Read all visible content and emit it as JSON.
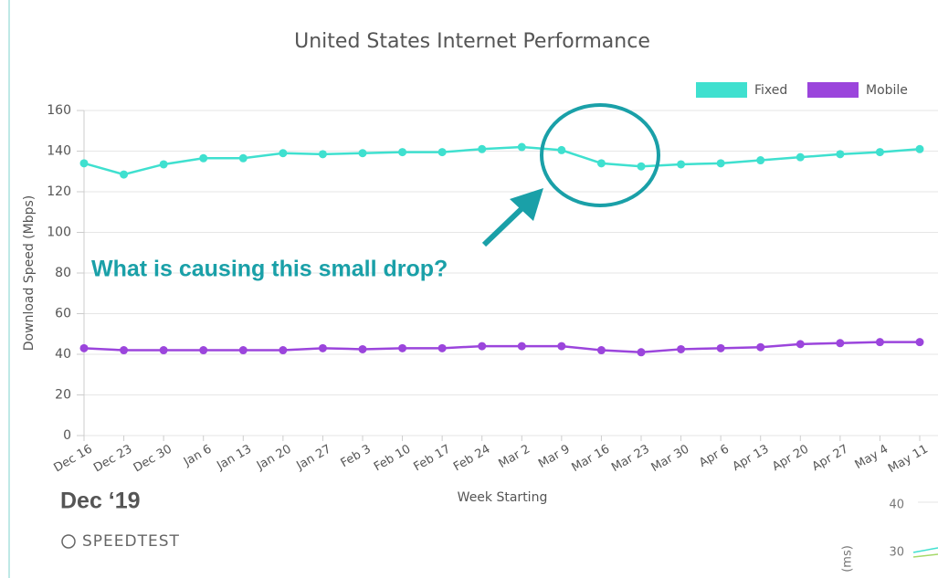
{
  "chart_data": {
    "type": "line",
    "title": "United States Internet Performance",
    "x_label": "Week Starting",
    "y_label": "Download Speed (Mbps)",
    "categories": [
      "Dec 16",
      "Dec 23",
      "Dec 30",
      "Jan 6",
      "Jan 13",
      "Jan 20",
      "Jan 27",
      "Feb 3",
      "Feb 10",
      "Feb 17",
      "Feb 24",
      "Mar 2",
      "Mar 9",
      "Mar 16",
      "Mar 23",
      "Mar 30",
      "Apr 6",
      "Apr 13",
      "Apr 20",
      "Apr 27",
      "May 4",
      "May 11"
    ],
    "series": [
      {
        "name": "Fixed",
        "color": "#3fe0cf",
        "values": [
          134,
          128.5,
          133.5,
          136.5,
          136.5,
          139,
          138.5,
          139,
          139.5,
          139.5,
          141,
          142,
          140.5,
          134,
          132.5,
          133.5,
          134,
          135.5,
          137,
          138.5,
          139.5,
          141
        ]
      },
      {
        "name": "Mobile",
        "color": "#9b45dc",
        "values": [
          43,
          42,
          42,
          42,
          42,
          42,
          43,
          42.5,
          43,
          43,
          44,
          44,
          44,
          42,
          41,
          42.5,
          43,
          43.5,
          45,
          45.5,
          46,
          46
        ]
      }
    ],
    "ylim": [
      0,
      160
    ],
    "yticks": [
      0,
      20,
      40,
      60,
      80,
      100,
      120,
      140,
      160
    ],
    "grid": true,
    "legend": "top-right",
    "annotations": [
      "What is causing this small drop?",
      "Dec ‘19",
      "SPEEDTEST"
    ]
  },
  "background_fragment": {
    "ticks": [
      "40",
      "30"
    ],
    "axis_label": "(ms)"
  }
}
